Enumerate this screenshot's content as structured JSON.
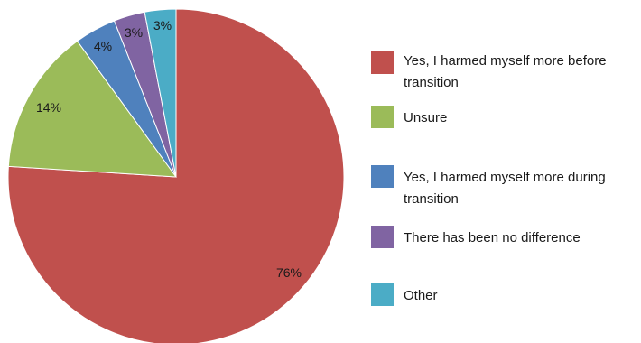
{
  "chart_data": {
    "type": "pie",
    "title": "",
    "start_angle_deg": 0,
    "direction": "clockwise",
    "legend_position": "right",
    "slices": [
      {
        "label": "Yes, I harmed myself more before transition",
        "value": 76,
        "value_label": "76%",
        "color": "#C0504D"
      },
      {
        "label": "Unsure",
        "value": 14,
        "value_label": "14%",
        "color": "#9BBB59"
      },
      {
        "label": "Yes, I harmed myself more during transition",
        "value": 4,
        "value_label": "4%",
        "color": "#4F81BD"
      },
      {
        "label": "There has been no difference",
        "value": 3,
        "value_label": "3%",
        "color": "#8064A2"
      },
      {
        "label": "Other",
        "value": 3,
        "value_label": "3%",
        "color": "#4BACC6"
      }
    ]
  }
}
